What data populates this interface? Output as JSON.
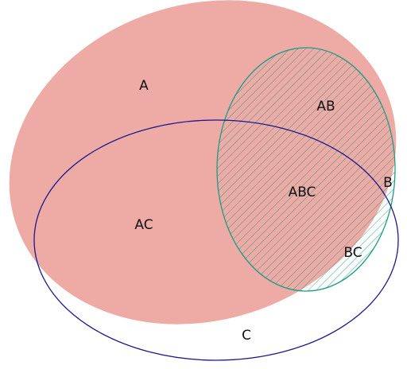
{
  "sets": [
    {
      "id": "A",
      "label": "A",
      "fill": "#eeaba5",
      "stroke": "#eeaba5"
    },
    {
      "id": "B",
      "label": "B",
      "fill": "#ffffff",
      "stroke": "#1f9c86",
      "hatch": "#1f9c86"
    },
    {
      "id": "C",
      "label": "C",
      "fill": "none",
      "stroke": "#1a1a8c"
    }
  ],
  "regions": {
    "A": "A",
    "AB": "AB",
    "AC": "AC",
    "ABC": "ABC",
    "B": "B",
    "BC": "BC",
    "C": "C"
  }
}
